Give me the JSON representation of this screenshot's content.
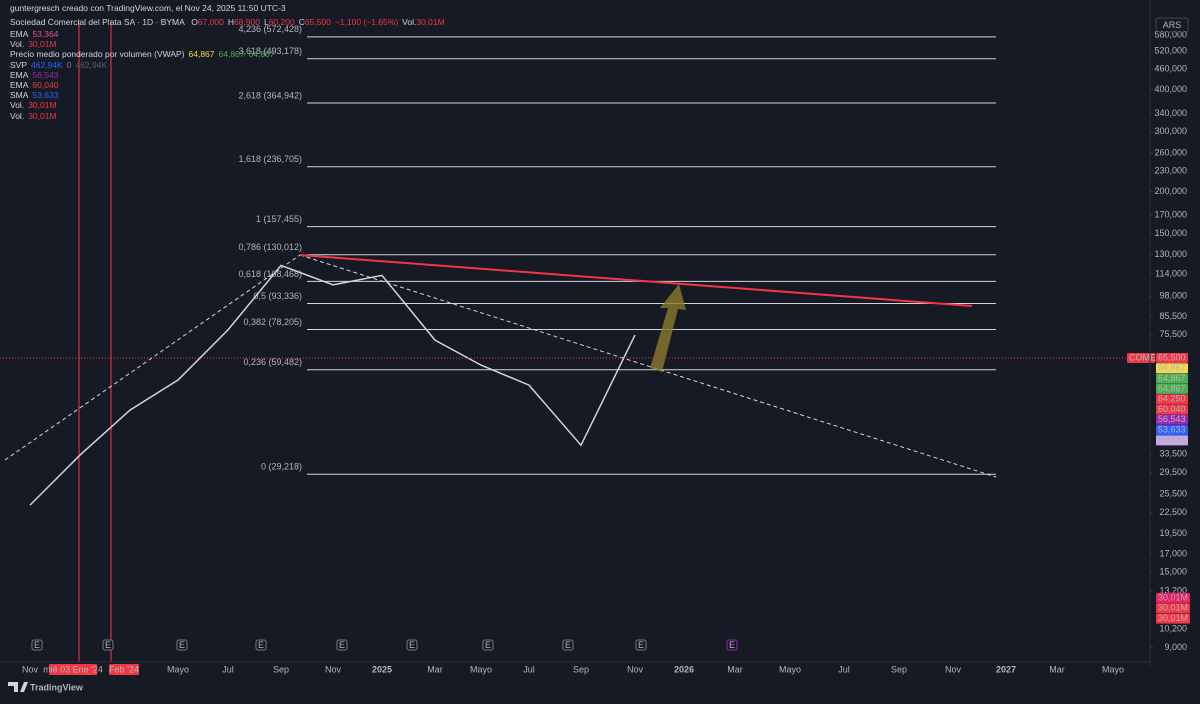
{
  "header": {
    "attribution": "guntergresch creado con TradingView.com, el Nov 24, 2025 11:50 UTC-3",
    "symbol": "Sociedad Comercial del Plata SA · 1D · BYMA",
    "ohlc": [
      {
        "key": "O",
        "value": "67,000"
      },
      {
        "key": "H",
        "value": "68,900"
      },
      {
        "key": "L",
        "value": "60,200"
      },
      {
        "key": "C",
        "value": "65,500"
      }
    ],
    "change": "−1,100 (−1,65%)",
    "volume_key": "Vol.",
    "volume": "30,01M",
    "currency": "ARS"
  },
  "indicators": [
    {
      "name": "EMA",
      "values": [
        "53,364"
      ],
      "colors": [
        "#e5508a"
      ]
    },
    {
      "name": "Vol.",
      "values": [
        "30,01M"
      ],
      "colors": [
        "#f23645"
      ]
    },
    {
      "name": "Precio medio ponderado por volumen (VWAP)",
      "values": [
        "64,867",
        "64,867",
        "64,867"
      ],
      "colors": [
        "#f7d84a",
        "#4caf50",
        "#4caf50"
      ]
    },
    {
      "name": "SVP",
      "values": [
        "462,94K",
        "0",
        "462,94K"
      ],
      "colors": [
        "#2962ff",
        "#787b86",
        "#5d606b"
      ]
    },
    {
      "name": "EMA",
      "values": [
        "56,543"
      ],
      "colors": [
        "#9c27b0"
      ]
    },
    {
      "name": "EMA",
      "values": [
        "60,040"
      ],
      "colors": [
        "#f23645"
      ]
    },
    {
      "name": "SMA",
      "values": [
        "53,633"
      ],
      "colors": [
        "#2962ff"
      ]
    },
    {
      "name": "Vol.",
      "values": [
        "30,01M"
      ],
      "colors": [
        "#f23645"
      ]
    },
    {
      "name": "Vol.",
      "values": [
        "30,01M"
      ],
      "colors": [
        "#f23645"
      ]
    }
  ],
  "chart_data": {
    "type": "line",
    "log_scale": true,
    "grid": false,
    "categories": [
      "Nov",
      null,
      null,
      "Mayo",
      "Jul",
      "Sep",
      "Nov",
      "2025",
      "Mar",
      "Mayo",
      "Jul",
      "Sep",
      "Nov",
      "2026",
      "Mar",
      "Mayo",
      "Jul",
      "Sep",
      "Nov",
      "2027",
      "Mar",
      "Mayo"
    ],
    "series": [
      {
        "name": "COME",
        "color": "#d1d4dc",
        "values": [
          23700,
          33300,
          45200,
          55500,
          78000,
          121000,
          106000,
          113000,
          72800,
          61400,
          53600,
          35600,
          75300,
          null,
          null,
          null,
          null,
          null,
          null,
          null,
          null,
          null
        ]
      }
    ],
    "ylim": [
      8150,
      642000
    ],
    "yticks": [
      {
        "value": 580000,
        "label": "580,000"
      },
      {
        "value": 520000,
        "label": "520,000"
      },
      {
        "value": 460000,
        "label": "460,000"
      },
      {
        "value": 400000,
        "label": "400,000"
      },
      {
        "value": 340000,
        "label": "340,000"
      },
      {
        "value": 300000,
        "label": "300,000"
      },
      {
        "value": 260000,
        "label": "260,000"
      },
      {
        "value": 230000,
        "label": "230,000"
      },
      {
        "value": 200000,
        "label": "200,000"
      },
      {
        "value": 170000,
        "label": "170,000"
      },
      {
        "value": 150000,
        "label": "150,000"
      },
      {
        "value": 130000,
        "label": "130,000"
      },
      {
        "value": 114000,
        "label": "114,000"
      },
      {
        "value": 98000,
        "label": "98,000"
      },
      {
        "value": 85500,
        "label": "85,500"
      },
      {
        "value": 75500,
        "label": "75,500"
      },
      {
        "value": 33500,
        "label": "33,500"
      },
      {
        "value": 29500,
        "label": "29,500"
      },
      {
        "value": 25500,
        "label": "25,500"
      },
      {
        "value": 22500,
        "label": "22,500"
      },
      {
        "value": 19500,
        "label": "19,500"
      },
      {
        "value": 17000,
        "label": "17,000"
      },
      {
        "value": 15000,
        "label": "15,000"
      },
      {
        "value": 13200,
        "label": "13,200"
      },
      {
        "value": 10200,
        "label": "10,200"
      },
      {
        "value": 9000,
        "label": "9,000"
      }
    ],
    "fib_levels": [
      {
        "label": "4,236 (572,428)",
        "price": 572428
      },
      {
        "label": "3,618 (493,178)",
        "price": 493178
      },
      {
        "label": "2,618 (364,942)",
        "price": 364942
      },
      {
        "label": "1,618 (236,705)",
        "price": 236705
      },
      {
        "label": "1 (157,455)",
        "price": 157455
      },
      {
        "label": "0,786 (130,012)",
        "price": 130012
      },
      {
        "label": "0,618 (108,468)",
        "price": 108468
      },
      {
        "label": "0,5 (93,336)",
        "price": 93336
      },
      {
        "label": "0,382 (78,205)",
        "price": 78205
      },
      {
        "label": "0,236 (59,482)",
        "price": 59482
      },
      {
        "label": "0 (29,218)",
        "price": 29218
      }
    ],
    "price_tags": [
      {
        "label": "COME",
        "value": "65,500",
        "color": "#f23645"
      },
      {
        "value": "64,867",
        "color": "#f7d84a"
      },
      {
        "value": "64,867",
        "color": "#4caf50"
      },
      {
        "value": "64,867",
        "color": "#4caf50"
      },
      {
        "value": "64,250",
        "color": "#f23645"
      },
      {
        "value": "60,040",
        "color": "#f23645"
      },
      {
        "value": "56,543",
        "color": "#9c27b0"
      },
      {
        "value": "53,633",
        "color": "#2962ff"
      },
      {
        "value": "53,364",
        "color": "#c9a6e8"
      }
    ],
    "volume_tags": [
      "30,01M",
      "30,01M",
      "30,01M"
    ],
    "crosshair_labels": [
      "mié 03 Ene '24",
      "Feb '24"
    ],
    "event_marker": "E"
  },
  "footer": {
    "logo": "TradingView"
  }
}
